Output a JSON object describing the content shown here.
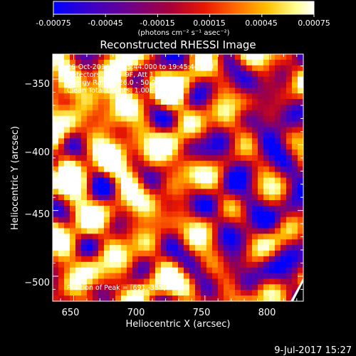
{
  "colorbar": {
    "tick_labels": [
      "-0.00075",
      "-0.00045",
      "-0.00015",
      "0.00015",
      "0.00045",
      "0.00075"
    ],
    "tick_values": [
      -0.00075,
      -0.00045,
      -0.00015,
      0.00015,
      0.00045,
      0.00075
    ],
    "range": [
      -0.00075,
      0.00075
    ],
    "unit_label": "(photons cm⁻² s⁻¹ asec⁻²)",
    "palette": [
      "#0000ff",
      "#3a00c8",
      "#6a0090",
      "#a80038",
      "#e81800",
      "#ff6a00",
      "#ffc000",
      "#ffff90",
      "#ffffff"
    ]
  },
  "chart_data": {
    "type": "heatmap",
    "title": "Reconstructed RHESSI Image",
    "xlabel": "Heliocentric X (arcsec)",
    "ylabel": "Heliocentric Y (arcsec)",
    "xlim": [
      634,
      825
    ],
    "ylim": [
      -519,
      -331
    ],
    "xticks": [
      650,
      700,
      750,
      800
    ],
    "xtick_labels": [
      "650",
      "700",
      "750",
      "800"
    ],
    "yticks": [
      -500,
      -450,
      -400,
      -350
    ],
    "ytick_labels": [
      "−500",
      "−450",
      "−400",
      "−350"
    ],
    "annotations": [
      "26-Oct-2014 19:35:44.000 to 19:45:44.000",
      "Detectors: 3F 6F 9F, Att 1",
      "Energy Range: 26.0 - 50.0 keV",
      "Clean    Total Counts: 1.00E+04"
    ],
    "peak_label": "Position of Peak = [691,-355]",
    "peak": [
      691,
      -355
    ],
    "grid": false,
    "value_range": [
      -0.00075,
      0.00075
    ]
  },
  "footer": {
    "date": "9-Jul-2017 15:27"
  }
}
